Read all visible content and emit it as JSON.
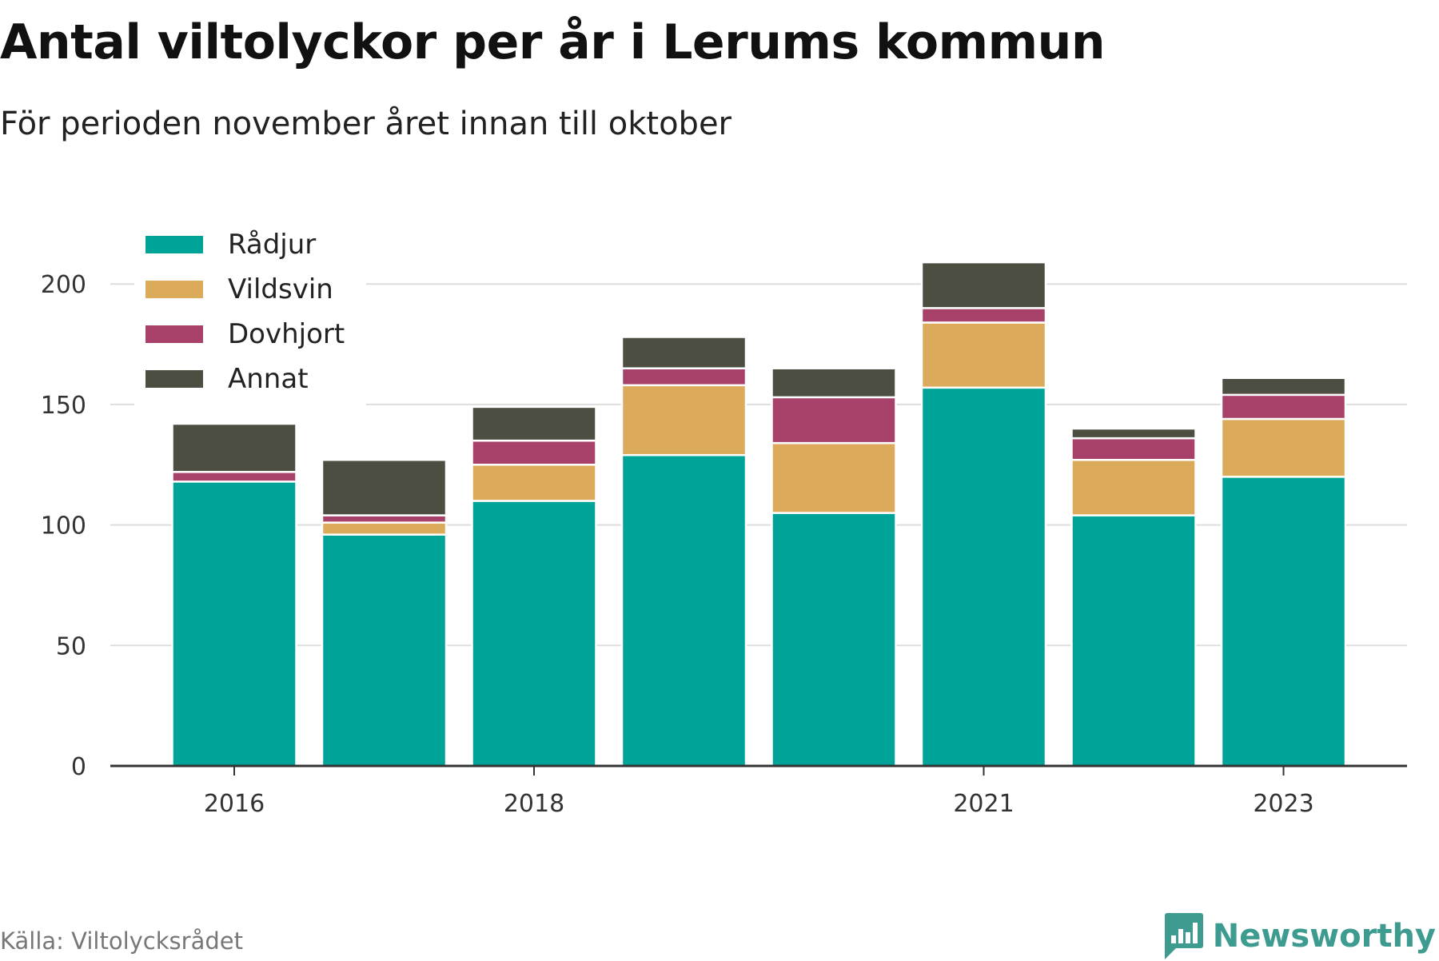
{
  "title": "Antal viltolyckor per år i Lerums kommun",
  "subtitle": "För perioden november året innan till oktober",
  "source": "Källa: Viltolycksrådet",
  "brand": {
    "name": "Newsworthy",
    "icon": "newsworthy-logo-icon",
    "color": "#3d9b8f"
  },
  "chart_data": {
    "type": "bar",
    "stacked": true,
    "title": "Antal viltolyckor per år i Lerums kommun",
    "subtitle": "För perioden november året innan till oktober",
    "categories": [
      "2016",
      "2017",
      "2018",
      "2019",
      "2020",
      "2021",
      "2022",
      "2023"
    ],
    "x_tick_labels": [
      "2016",
      "",
      "2018",
      "",
      "",
      "2021",
      "",
      "2023"
    ],
    "y_ticks": [
      "0",
      "50",
      "100",
      "150",
      "200"
    ],
    "ylim": [
      0,
      215
    ],
    "grid": true,
    "legend_position": "top-left",
    "series": [
      {
        "name": "Rådjur",
        "color": "#00a398",
        "values": [
          118,
          96,
          110,
          129,
          105,
          157,
          104,
          120
        ]
      },
      {
        "name": "Vildsvin",
        "color": "#dbab5b",
        "values": [
          0,
          5,
          15,
          29,
          29,
          27,
          23,
          24
        ]
      },
      {
        "name": "Dovhjort",
        "color": "#a8416a",
        "values": [
          4,
          3,
          10,
          7,
          19,
          6,
          9,
          10
        ]
      },
      {
        "name": "Annat",
        "color": "#4b4e40",
        "values": [
          20,
          23,
          14,
          13,
          12,
          19,
          4,
          7
        ]
      }
    ]
  }
}
